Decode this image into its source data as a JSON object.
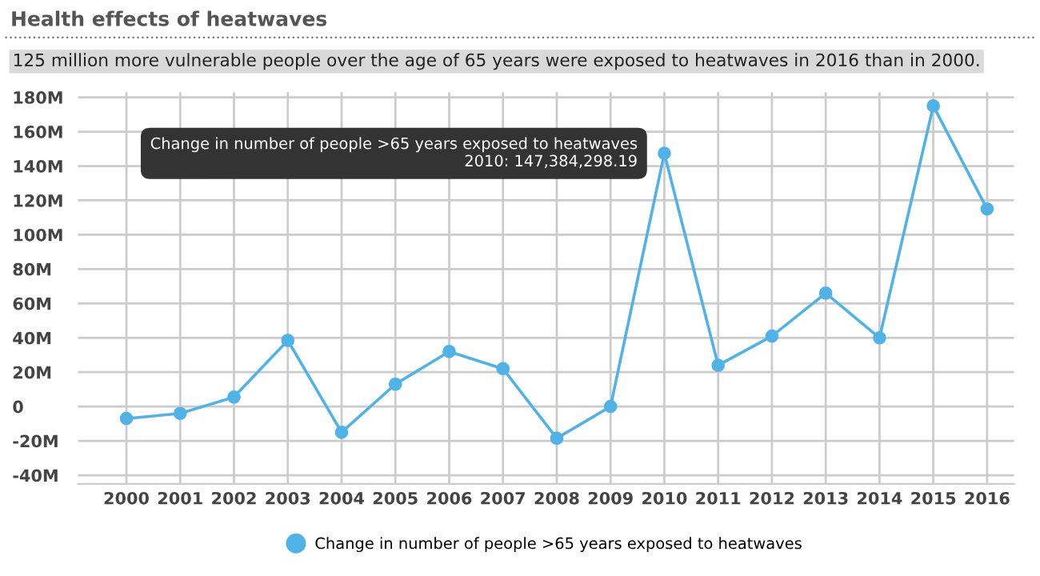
{
  "chart_data": {
    "type": "line",
    "title": "Health effects of heatwaves",
    "subtitle": "125 million more vulnerable people over the age of 65 years were exposed to heatwaves in 2016 than in 2000.",
    "categories": [
      "2000",
      "2001",
      "2002",
      "2003",
      "2004",
      "2005",
      "2006",
      "2007",
      "2008",
      "2009",
      "2010",
      "2011",
      "2012",
      "2013",
      "2014",
      "2015",
      "2016"
    ],
    "series": [
      {
        "name": "Change in number of people >65 years exposed to heatwaves",
        "color": "#4fb3e8",
        "values": [
          -7,
          -4,
          5.5,
          38.5,
          -15,
          13,
          32,
          22,
          -18.5,
          0,
          147.38,
          24,
          41,
          66,
          40,
          175,
          115
        ]
      }
    ],
    "ylim": [
      -45,
      183
    ],
    "yticks": [
      {
        "value": -40,
        "label": "-40M"
      },
      {
        "value": -20,
        "label": "-20M"
      },
      0,
      {
        "value": 20,
        "label": "20M"
      },
      {
        "value": 40,
        "label": "40M"
      },
      {
        "value": 60,
        "label": "60M"
      },
      {
        "value": 80,
        "label": "80M"
      },
      {
        "value": 100,
        "label": "100M"
      },
      {
        "value": 120,
        "label": "120M"
      },
      {
        "value": 140,
        "label": "140M"
      },
      {
        "value": 160,
        "label": "160M"
      },
      {
        "value": 180,
        "label": "180M"
      }
    ],
    "annotations": [
      {
        "text": "Change in number of people >65 years exposed to heatwaves\n2010: 147,384,298.19",
        "x": "2010",
        "y": 147.38
      }
    ],
    "grid": true,
    "legend": "bottom",
    "marker": "circle",
    "line_style": "solid"
  }
}
